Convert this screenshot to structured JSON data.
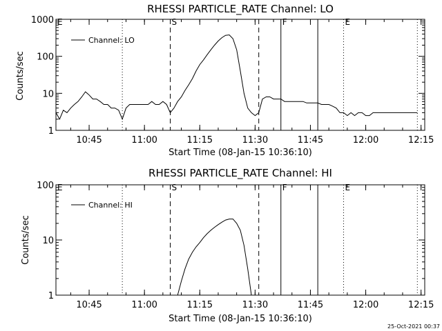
{
  "stamp": "25-Oct-2021 00:37",
  "chart_data": [
    {
      "type": "line",
      "title": "RHESSI PARTICLE_RATE Channel: LO",
      "xlabel": "Start Time (08-Jan-15 10:36:10)",
      "ylabel": "Counts/sec",
      "legend": "Channel: LO",
      "legend_placement": "top-left",
      "y_scale": "log",
      "xlim": [
        "10:36",
        "12:16"
      ],
      "ylim": [
        1,
        1000
      ],
      "x_ticks": [
        "10:45",
        "11:00",
        "11:15",
        "11:30",
        "11:45",
        "12:00",
        "12:15"
      ],
      "y_ticks": [
        "1",
        "10",
        "100",
        "1000"
      ],
      "markers": [
        {
          "time": "10:36",
          "style": "none",
          "label": "E"
        },
        {
          "time": "10:54",
          "style": "dotted",
          "label": ""
        },
        {
          "time": "11:07",
          "style": "dashed",
          "label": "S"
        },
        {
          "time": "11:31",
          "style": "dashed",
          "label": ""
        },
        {
          "time": "11:37",
          "style": "solid",
          "label": "F"
        },
        {
          "time": "11:47",
          "style": "solid",
          "label": ""
        },
        {
          "time": "11:54",
          "style": "dotted",
          "label": "E"
        },
        {
          "time": "12:14",
          "style": "dotted",
          "label": ""
        }
      ],
      "series": [
        {
          "name": "Channel: LO",
          "x": [
            "10:36",
            "10:37",
            "10:38",
            "10:39",
            "10:40",
            "10:41",
            "10:42",
            "10:43",
            "10:44",
            "10:45",
            "10:46",
            "10:47",
            "10:48",
            "10:49",
            "10:50",
            "10:51",
            "10:52",
            "10:53",
            "10:54",
            "10:55",
            "10:56",
            "10:57",
            "10:58",
            "10:59",
            "11:00",
            "11:01",
            "11:02",
            "11:03",
            "11:04",
            "11:05",
            "11:06",
            "11:07",
            "11:08",
            "11:09",
            "11:10",
            "11:11",
            "11:12",
            "11:13",
            "11:14",
            "11:15",
            "11:16",
            "11:17",
            "11:18",
            "11:19",
            "11:20",
            "11:21",
            "11:22",
            "11:23",
            "11:24",
            "11:25",
            "11:26",
            "11:27",
            "11:28",
            "11:29",
            "11:30",
            "11:31",
            "11:32",
            "11:33",
            "11:34",
            "11:35",
            "11:36",
            "11:37",
            "11:38",
            "11:39",
            "11:40",
            "11:41",
            "11:42",
            "11:43",
            "11:44",
            "11:45",
            "11:46",
            "11:47",
            "11:48",
            "11:49",
            "11:50",
            "11:51",
            "11:52",
            "11:53",
            "11:54",
            "11:55",
            "11:56",
            "11:57",
            "11:58",
            "11:59",
            "12:00",
            "12:01",
            "12:02",
            "12:03",
            "12:04",
            "12:05",
            "12:06",
            "12:07",
            "12:08",
            "12:09",
            "12:10",
            "12:11",
            "12:12",
            "12:13",
            "12:14"
          ],
          "y": [
            3,
            2,
            3.5,
            3,
            4,
            5,
            6,
            8,
            11,
            9,
            7,
            7,
            6,
            5,
            5,
            4,
            4,
            3.5,
            2,
            4,
            5,
            5,
            5,
            5,
            5,
            5,
            6,
            5,
            5,
            6,
            5,
            3,
            4,
            6,
            8,
            12,
            17,
            25,
            40,
            60,
            80,
            110,
            150,
            200,
            260,
            320,
            370,
            380,
            300,
            150,
            40,
            10,
            4,
            3,
            2.5,
            3,
            7,
            8,
            8,
            7,
            7,
            7,
            6,
            6,
            6,
            6,
            6,
            6,
            5.5,
            5.5,
            5.5,
            5.5,
            5,
            5,
            5,
            4.5,
            4,
            3,
            3,
            2.5,
            3,
            2.5,
            3,
            3,
            2.5,
            2.5,
            3,
            3,
            3,
            3,
            3,
            3,
            3,
            3,
            3,
            3,
            3,
            3,
            3
          ]
        }
      ]
    },
    {
      "type": "line",
      "title": "RHESSI PARTICLE_RATE Channel: HI",
      "xlabel": "Start Time (08-Jan-15 10:36:10)",
      "ylabel": "Counts/sec",
      "legend": "Channel: HI",
      "legend_placement": "top-left",
      "y_scale": "log",
      "xlim": [
        "10:36",
        "12:16"
      ],
      "ylim": [
        1,
        100
      ],
      "x_ticks": [
        "10:45",
        "11:00",
        "11:15",
        "11:30",
        "11:45",
        "12:00",
        "12:15"
      ],
      "y_ticks": [
        "1",
        "10",
        "100"
      ],
      "markers": [
        {
          "time": "10:36",
          "style": "none",
          "label": "E"
        },
        {
          "time": "10:54",
          "style": "dotted",
          "label": ""
        },
        {
          "time": "11:07",
          "style": "dashed",
          "label": "S"
        },
        {
          "time": "11:31",
          "style": "dashed",
          "label": ""
        },
        {
          "time": "11:37",
          "style": "solid",
          "label": "F"
        },
        {
          "time": "11:47",
          "style": "solid",
          "label": ""
        },
        {
          "time": "11:54",
          "style": "dotted",
          "label": "E"
        },
        {
          "time": "12:14",
          "style": "dotted",
          "label": ""
        }
      ],
      "series": [
        {
          "name": "Channel: HI",
          "x": [
            "11:09",
            "11:10",
            "11:11",
            "11:12",
            "11:13",
            "11:14",
            "11:15",
            "11:16",
            "11:17",
            "11:18",
            "11:19",
            "11:20",
            "11:21",
            "11:22",
            "11:23",
            "11:24",
            "11:25",
            "11:26",
            "11:27",
            "11:28",
            "11:29"
          ],
          "y": [
            1,
            1.8,
            3,
            4.5,
            6,
            7.5,
            9,
            11,
            13,
            15,
            17,
            19,
            21,
            23,
            24,
            24,
            20,
            15,
            8,
            3,
            1
          ]
        }
      ]
    }
  ]
}
